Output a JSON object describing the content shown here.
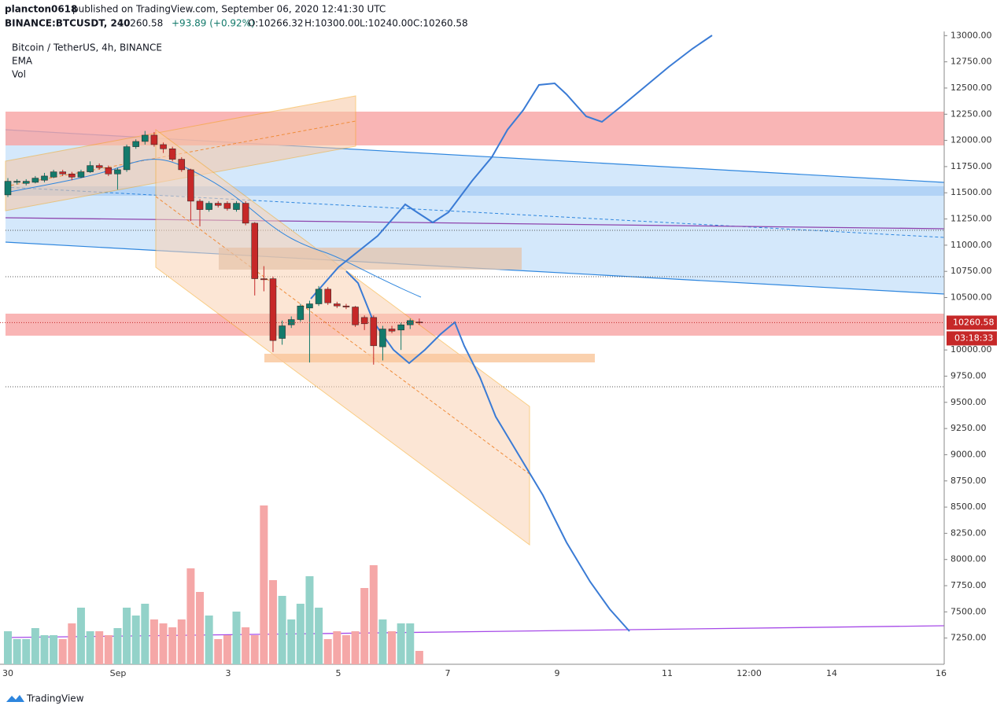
{
  "header": {
    "publisher": "plancton0618",
    "published": "published on TradingView.com, September 06, 2020 12:41:30 UTC",
    "symbol": "BINANCE:BTCUSDT, 240",
    "last": "10260.58",
    "change": "+93.89 (+0.92%)",
    "open": "O:10266.32",
    "high": "H:10300.00",
    "low": "L:10240.00",
    "close": "C:10260.58"
  },
  "legend": [
    "Bitcoin / TetherUS, 4h, BINANCE",
    "EMA",
    "Vol"
  ],
  "footer": "TradingView",
  "chart_data": {
    "type": "candlestick",
    "up_color": "#137a6b",
    "down_color": "#c62828",
    "volume_up_color": "#93d2c9",
    "volume_down_color": "#f5a7a7",
    "open": [
      11480,
      11600,
      11590,
      11600,
      11620,
      11650,
      11700,
      11680,
      11650,
      11700,
      11760,
      11740,
      11680,
      11720,
      11940,
      11990,
      12050,
      11960,
      11920,
      11820,
      11720,
      11420,
      11340,
      11400,
      11400,
      11340,
      11400,
      11210,
      10680,
      10680,
      10110,
      10240,
      10290,
      10400,
      10440,
      10580,
      10440,
      10420,
      10410,
      10310,
      10310,
      10030,
      10200,
      10190,
      10240,
      10266.32
    ],
    "high": [
      11640,
      11630,
      11630,
      11660,
      11690,
      11720,
      11720,
      11700,
      11720,
      11800,
      11780,
      11760,
      11740,
      11960,
      12010,
      12090,
      12080,
      11980,
      11940,
      11840,
      11730,
      11440,
      11420,
      11420,
      11420,
      11420,
      11420,
      11220,
      10800,
      10700,
      10280,
      10320,
      10440,
      10470,
      10610,
      10600,
      10460,
      10440,
      10420,
      10330,
      10330,
      10230,
      10230,
      10260,
      10300,
      10300
    ],
    "low": [
      11460,
      11580,
      11570,
      11590,
      11600,
      11640,
      11660,
      11620,
      11640,
      11690,
      11720,
      11660,
      11530,
      11700,
      11920,
      11960,
      11940,
      11880,
      11800,
      11700,
      11230,
      11180,
      11320,
      11360,
      11330,
      11320,
      11190,
      10520,
      10560,
      9980,
      10050,
      10210,
      10270,
      9880,
      10420,
      10430,
      10400,
      10390,
      10220,
      10190,
      9860,
      9900,
      10160,
      10000,
      10200,
      10240
    ],
    "close": [
      11610,
      11610,
      11610,
      11640,
      11660,
      11700,
      11680,
      11650,
      11700,
      11760,
      11740,
      11680,
      11720,
      11940,
      11990,
      12050,
      11960,
      11920,
      11820,
      11720,
      11420,
      11340,
      11400,
      11380,
      11350,
      11400,
      11210,
      10680,
      10670,
      10090,
      10230,
      10290,
      10420,
      10440,
      10580,
      10450,
      10420,
      10410,
      10240,
      10250,
      10040,
      10200,
      10180,
      10240,
      10280,
      10260.58
    ],
    "volume": [
      42,
      32,
      32,
      46,
      37,
      37,
      32,
      52,
      72,
      42,
      42,
      37,
      46,
      72,
      62,
      77,
      57,
      52,
      47,
      57,
      122,
      92,
      62,
      32,
      37,
      67,
      47,
      37,
      202,
      107,
      87,
      57,
      77,
      112,
      72,
      32,
      42,
      37,
      42,
      97,
      126,
      57,
      42,
      52,
      52,
      17
    ],
    "ylim": [
      7000,
      13040
    ],
    "yticks": [
      {
        "value": 13000,
        "label": "13000.00"
      },
      {
        "value": 12750,
        "label": "12750.00"
      },
      {
        "value": 12500,
        "label": "12500.00"
      },
      {
        "value": 12250,
        "label": "12250.00"
      },
      {
        "value": 12000,
        "label": "12000.00"
      },
      {
        "value": 11750,
        "label": "11750.00"
      },
      {
        "value": 11500,
        "label": "11500.00"
      },
      {
        "value": 11250,
        "label": "11250.00"
      },
      {
        "value": 11000,
        "label": "11000.00"
      },
      {
        "value": 10750,
        "label": "10750.00"
      },
      {
        "value": 10500,
        "label": "10500.00"
      },
      {
        "value": 10000,
        "label": "10000.00"
      },
      {
        "value": 9750,
        "label": "9750.00"
      },
      {
        "value": 9500,
        "label": "9500.00"
      },
      {
        "value": 9250,
        "label": "9250.00"
      },
      {
        "value": 9000,
        "label": "9000.00"
      },
      {
        "value": 8750,
        "label": "8750.00"
      },
      {
        "value": 8500,
        "label": "8500.00"
      },
      {
        "value": 8250,
        "label": "8250.00"
      },
      {
        "value": 8000,
        "label": "8000.00"
      },
      {
        "value": 7750,
        "label": "7750.00"
      },
      {
        "value": 7500,
        "label": "7500.00"
      },
      {
        "value": 7250,
        "label": "7250.00"
      }
    ],
    "xtick_labels": [
      "30",
      "Sep",
      "3",
      "5",
      "7",
      "9",
      "11",
      "12:00",
      "14",
      "16"
    ],
    "price_label": {
      "value": 10260.58,
      "label": "10260.58"
    },
    "countdown": "03:18:33"
  }
}
